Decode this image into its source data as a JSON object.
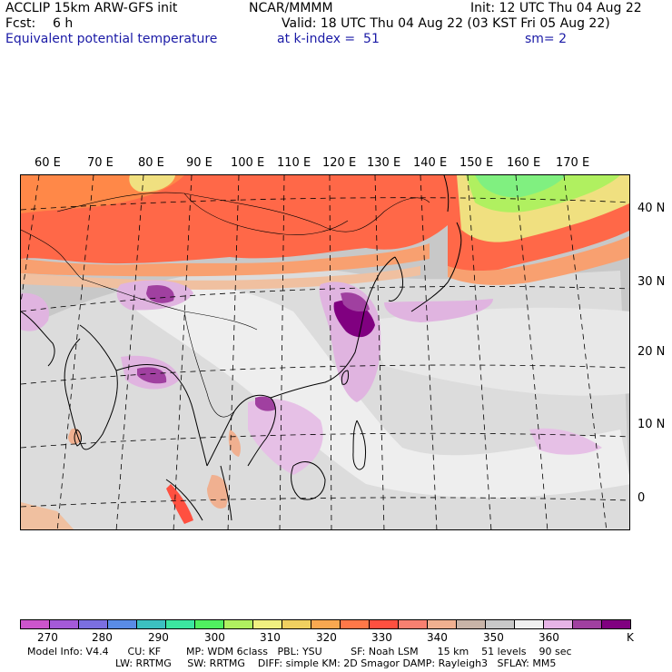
{
  "header": {
    "model": "ACCLIP 15km ARW-GFS init",
    "org": "NCAR/MMMM",
    "init": "Init: 12 UTC Thu 04 Aug 22",
    "fcst_label": "Fcst:",
    "fcst_value": "6 h",
    "valid": "Valid: 18 UTC Thu 04 Aug 22 (03 KST Fri 05 Aug 22)",
    "field": "Equivalent potential temperature",
    "level": "at k-index =  51",
    "smooth": "sm= 2"
  },
  "map": {
    "lon_labels": [
      "60 E",
      "70 E",
      "80 E",
      "90 E",
      "100 E",
      "110 E",
      "120 E",
      "130 E",
      "140 E",
      "150 E",
      "160 E",
      "170 E"
    ],
    "lat_labels": [
      "40 N",
      "30 N",
      "20 N",
      "10 N",
      "0"
    ]
  },
  "colorbar": {
    "colors": [
      "#cc55cc",
      "#a45ad8",
      "#7b6fe0",
      "#5a8ce6",
      "#3cc0c0",
      "#3ce6a0",
      "#50f060",
      "#b0f060",
      "#f0f080",
      "#f0d060",
      "#f8a850",
      "#ff7848",
      "#ff5040",
      "#f88070",
      "#f0b090",
      "#c8b4a8",
      "#c8c8c8",
      "#f0f0f0",
      "#e6b4e6",
      "#a040a0",
      "#800080"
    ],
    "labels": [
      "270",
      "280",
      "290",
      "300",
      "310",
      "320",
      "330",
      "340",
      "350",
      "360"
    ],
    "unit": "K"
  },
  "model_info": {
    "line1": "Model Info: V4.4      CU: KF        MP: WDM 6class   PBL: YSU         SF: Noah LSM      15 km    51 levels    90 sec",
    "line2": "LW: RRTMG     SW: RRTMG    DIFF: simple KM: 2D Smagor DAMP: Rayleigh3   SFLAY: MM5"
  }
}
